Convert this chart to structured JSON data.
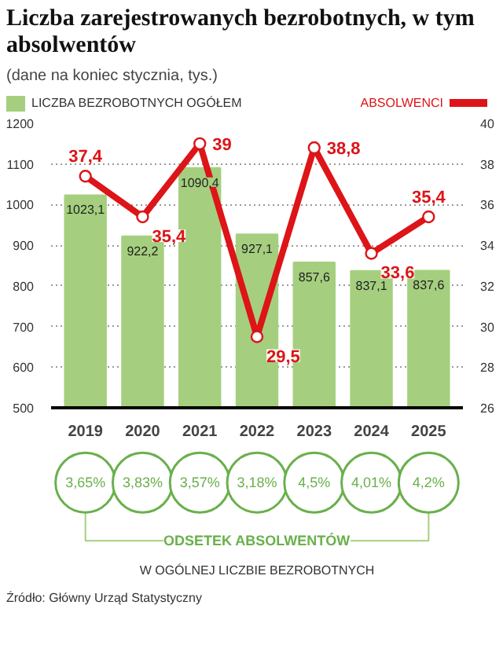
{
  "chart_data": {
    "type": "bar",
    "title": "Liczba zarejestrowanych bezrobotnych, w tym absolwentów",
    "subtitle": "(dane na koniec stycznia, tys.)",
    "categories": [
      "2019",
      "2020",
      "2021",
      "2022",
      "2023",
      "2024",
      "2025"
    ],
    "series": [
      {
        "name": "LICZBA BEZROBOTNYCH OGÓŁEM",
        "color": "#a5cf7f",
        "values": [
          1023.1,
          922.2,
          1090.4,
          927.1,
          857.6,
          837.1,
          837.6
        ],
        "value_labels": [
          "1023,1",
          "922,2",
          "1090,4",
          "927,1",
          "857,6",
          "837,1",
          "837,6"
        ]
      },
      {
        "name": "ABSOLWENCI",
        "type": "line",
        "axis": "y2",
        "color": "#dd1418",
        "marker": "circle",
        "values": [
          37.4,
          35.4,
          39,
          29.5,
          38.8,
          33.6,
          35.4
        ],
        "value_labels": [
          "37,4",
          "35,4",
          "39",
          "29,5",
          "38,8",
          "33,6",
          "35,4"
        ]
      }
    ],
    "ylim": [
      500,
      1200
    ],
    "yticks": [
      500,
      600,
      700,
      800,
      900,
      1000,
      1100,
      1200
    ],
    "y2lim": [
      26,
      40
    ],
    "y2ticks": [
      26,
      28,
      30,
      32,
      34,
      36,
      38,
      40
    ],
    "grid": "y",
    "legend": "top",
    "annotations": [
      "3,65%",
      "3,83%",
      "3,57%",
      "3,18%",
      "4,5%",
      "4,01%",
      "4,2%",
      "ODSETEK ABSOLWENTÓW",
      "W OGÓLNEJ LICZBIE BEZROBOTNYCH",
      "Źródło: Główny Urząd Statystyczny"
    ]
  }
}
